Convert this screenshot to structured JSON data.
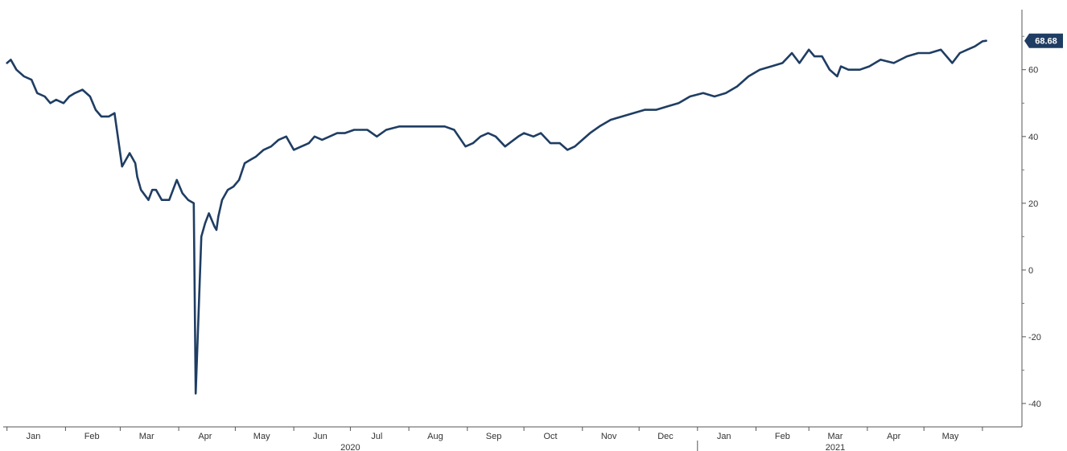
{
  "chart_data": {
    "type": "line",
    "title": "",
    "xlabel": "",
    "ylabel": "",
    "ylim": [
      -47,
      78
    ],
    "y_ticks": [
      60,
      40,
      20,
      0,
      -20,
      -40
    ],
    "y_axis_side": "right",
    "grid": false,
    "line_color": "#1f3d63",
    "last_value_label": "68.68",
    "x_month_labels": [
      "Jan",
      "Feb",
      "Mar",
      "Apr",
      "May",
      "Jun",
      "Jul",
      "Aug",
      "Sep",
      "Oct",
      "Nov",
      "Dec",
      "Jan",
      "Feb",
      "Mar",
      "Apr",
      "May"
    ],
    "x_year_labels": [
      "2020",
      "2021"
    ],
    "series": [
      {
        "x": [
          "2020-01-01",
          "2020-01-03",
          "2020-01-06",
          "2020-01-10",
          "2020-01-14",
          "2020-01-17",
          "2020-01-21",
          "2020-01-24",
          "2020-01-27",
          "2020-01-31",
          "2020-02-03",
          "2020-02-06",
          "2020-02-10",
          "2020-02-14",
          "2020-02-17",
          "2020-02-20",
          "2020-02-24",
          "2020-02-27",
          "2020-03-02",
          "2020-03-06",
          "2020-03-09",
          "2020-03-10",
          "2020-03-12",
          "2020-03-16",
          "2020-03-18",
          "2020-03-20",
          "2020-03-23",
          "2020-03-27",
          "2020-03-31",
          "2020-04-03",
          "2020-04-06",
          "2020-04-09",
          "2020-04-10",
          "2020-04-13",
          "2020-04-15",
          "2020-04-17",
          "2020-04-20",
          "2020-04-21",
          "2020-04-22",
          "2020-04-24",
          "2020-04-27",
          "2020-04-30",
          "2020-05-03",
          "2020-05-06",
          "2020-05-09",
          "2020-05-12",
          "2020-05-16",
          "2020-05-20",
          "2020-05-24",
          "2020-05-28",
          "2020-06-01",
          "2020-06-05",
          "2020-06-09",
          "2020-06-12",
          "2020-06-16",
          "2020-06-20",
          "2020-06-24",
          "2020-06-28",
          "2020-07-03",
          "2020-07-10",
          "2020-07-15",
          "2020-07-20",
          "2020-07-27",
          "2020-08-03",
          "2020-08-10",
          "2020-08-20",
          "2020-08-25",
          "2020-08-31",
          "2020-09-04",
          "2020-09-08",
          "2020-09-12",
          "2020-09-16",
          "2020-09-21",
          "2020-09-28",
          "2020-10-01",
          "2020-10-06",
          "2020-10-10",
          "2020-10-15",
          "2020-10-20",
          "2020-10-24",
          "2020-10-28",
          "2020-11-01",
          "2020-11-05",
          "2020-11-10",
          "2020-11-16",
          "2020-11-22",
          "2020-11-28",
          "2020-12-04",
          "2020-12-10",
          "2020-12-16",
          "2020-12-22",
          "2020-12-28",
          "2021-01-04",
          "2021-01-10",
          "2021-01-16",
          "2021-01-22",
          "2021-01-28",
          "2021-02-03",
          "2021-02-09",
          "2021-02-15",
          "2021-02-20",
          "2021-02-24",
          "2021-03-01",
          "2021-03-04",
          "2021-03-08",
          "2021-03-12",
          "2021-03-16",
          "2021-03-18",
          "2021-03-22",
          "2021-03-28",
          "2021-04-02",
          "2021-04-08",
          "2021-04-15",
          "2021-04-22",
          "2021-04-28",
          "2021-05-04",
          "2021-05-10",
          "2021-05-16",
          "2021-05-20",
          "2021-05-24",
          "2021-05-28",
          "2021-06-01",
          "2021-06-03"
        ],
        "values": [
          62,
          63,
          60,
          58,
          57,
          53,
          52,
          50,
          51,
          50,
          52,
          53,
          54,
          52,
          48,
          46,
          46,
          47,
          31,
          35,
          32,
          28,
          24,
          21,
          24,
          24,
          21,
          21,
          27,
          23,
          21,
          20,
          -37,
          10,
          14,
          17,
          13,
          12,
          16,
          21,
          24,
          25,
          27,
          32,
          33,
          34,
          36,
          37,
          39,
          40,
          36,
          37,
          38,
          40,
          39,
          40,
          41,
          41,
          42,
          42,
          40,
          42,
          43,
          43,
          43,
          43,
          42,
          37,
          38,
          40,
          41,
          40,
          37,
          40,
          41,
          40,
          41,
          38,
          38,
          36,
          37,
          39,
          41,
          43,
          45,
          46,
          47,
          48,
          48,
          49,
          50,
          52,
          53,
          52,
          53,
          55,
          58,
          60,
          61,
          62,
          65,
          62,
          66,
          64,
          64,
          60,
          58,
          61,
          60,
          60,
          61,
          63,
          62,
          64,
          65,
          65,
          66,
          62,
          65,
          66,
          67,
          68.5,
          68.68
        ]
      }
    ]
  }
}
